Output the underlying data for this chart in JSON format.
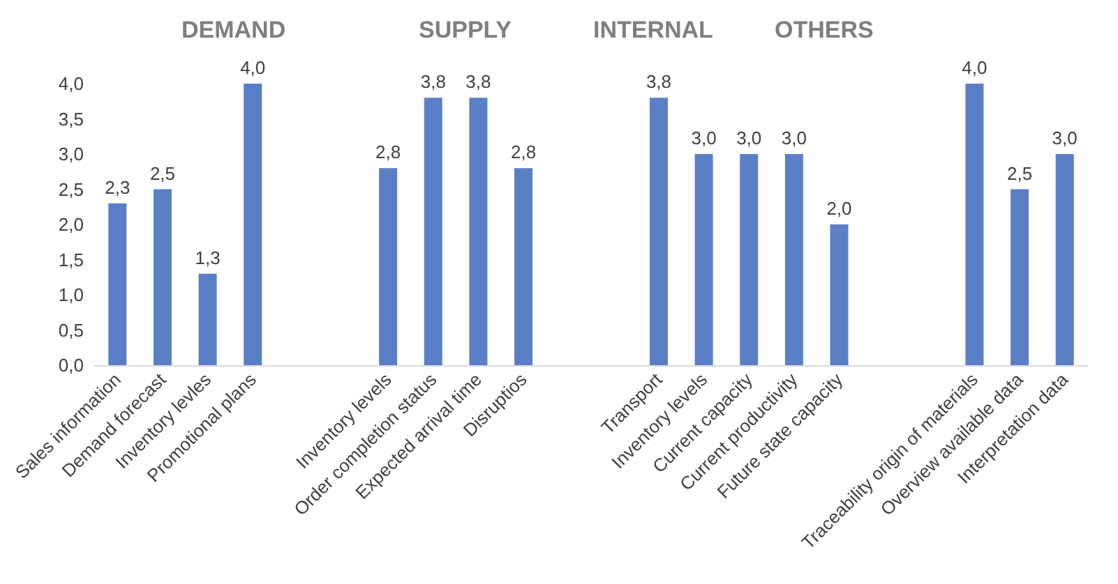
{
  "chart_data": {
    "type": "bar",
    "annotations": [
      "DEMAND",
      "SUPPLY",
      "INTERNAL",
      "OTHERS"
    ],
    "categories": [
      "Sales information",
      "Demand forecast",
      "Inventory levles",
      "Promotional plans",
      null,
      null,
      "Inventory levels",
      "Order completion status",
      "Expected arrival time",
      "Disruptios",
      null,
      null,
      "Transport",
      "Inventory levels",
      "Current capacity",
      "Current productivity",
      "Future state capacity",
      null,
      null,
      "Traceability origin of materials",
      "Overview available data",
      "Interpretation data"
    ],
    "values": [
      2.3,
      2.5,
      1.3,
      4.0,
      null,
      null,
      2.8,
      3.8,
      3.8,
      2.8,
      null,
      null,
      3.8,
      3.0,
      3.0,
      3.0,
      2.0,
      null,
      null,
      4.0,
      2.5,
      3.0
    ],
    "value_labels": [
      "2,3",
      "2,5",
      "1,3",
      "4,0",
      null,
      null,
      "2,8",
      "3,8",
      "3,8",
      "2,8",
      null,
      null,
      "3,8",
      "3,0",
      "3,0",
      "3,0",
      "2,0",
      null,
      null,
      "4,0",
      "2,5",
      "3,0"
    ],
    "color": "#5b7fc7",
    "ylim": [
      0,
      4
    ],
    "yticks": [
      {
        "value": 0,
        "label": "0,0"
      },
      {
        "value": 0.5,
        "label": "0,5"
      },
      {
        "value": 1,
        "label": "1,0"
      },
      {
        "value": 1.5,
        "label": "1,5"
      },
      {
        "value": 2,
        "label": "2,0"
      },
      {
        "value": 2.5,
        "label": "2,5"
      },
      {
        "value": 3,
        "label": "3,0"
      },
      {
        "value": 3.5,
        "label": "3,5"
      },
      {
        "value": 4,
        "label": "4,0"
      }
    ],
    "grid": false
  }
}
